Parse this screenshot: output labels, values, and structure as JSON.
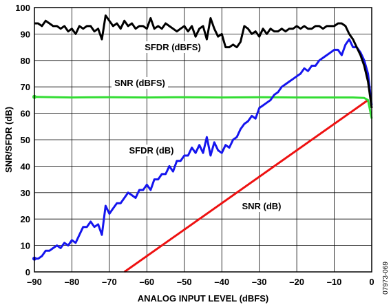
{
  "chart_data": {
    "type": "line",
    "title": "",
    "xlabel": "ANALOG INPUT LEVEL (dBFS)",
    "ylabel": "SNR/SFDR (dB)",
    "xlim": [
      -90,
      0
    ],
    "ylim": [
      0,
      100
    ],
    "x_ticks": [
      -90,
      -80,
      -70,
      -60,
      -50,
      -40,
      -30,
      -20,
      -10,
      0
    ],
    "y_ticks": [
      0,
      10,
      20,
      30,
      40,
      50,
      60,
      70,
      80,
      90,
      100
    ],
    "x_tick_labels": [
      "–90",
      "–80",
      "–70",
      "–60",
      "–50",
      "–40",
      "–30",
      "–20",
      "–10",
      "0"
    ],
    "y_tick_labels": [
      "0",
      "10",
      "20",
      "30",
      "40",
      "50",
      "60",
      "70",
      "80",
      "90",
      "100"
    ],
    "grid": true,
    "figure_id": "07973-069",
    "annotations": [
      "SFDR (dBFS)",
      "SNR (dBFS)",
      "SFDR (dB)",
      "SNR (dB)"
    ],
    "series": [
      {
        "name": "SFDR (dBFS)",
        "color": "#000000",
        "x": [
          -90,
          -89,
          -88,
          -87,
          -86,
          -85,
          -84,
          -83,
          -82,
          -81,
          -80,
          -79,
          -78,
          -77,
          -76,
          -75,
          -74,
          -73,
          -72,
          -71,
          -70,
          -69,
          -68,
          -67,
          -66,
          -65,
          -64,
          -63,
          -62,
          -61,
          -60,
          -59,
          -58,
          -57,
          -56,
          -55,
          -54,
          -53,
          -52,
          -51,
          -50,
          -49,
          -48,
          -47,
          -46,
          -45,
          -44,
          -43,
          -42,
          -41,
          -40,
          -39,
          -38,
          -37,
          -36,
          -35,
          -34,
          -33,
          -32,
          -31,
          -30,
          -29,
          -28,
          -27,
          -26,
          -25,
          -24,
          -23,
          -22,
          -21,
          -20,
          -19,
          -18,
          -17,
          -16,
          -15,
          -14,
          -13,
          -12,
          -11,
          -10,
          -9,
          -8,
          -7,
          -6,
          -5,
          -4,
          -3,
          -2,
          -1,
          0
        ],
        "y": [
          94,
          94,
          93,
          95,
          94,
          93,
          93,
          92,
          93,
          91,
          92,
          90,
          93,
          92,
          93,
          93,
          91,
          92,
          88,
          97,
          95,
          93,
          94,
          92,
          95,
          93,
          94,
          92,
          93,
          93,
          92,
          96,
          92,
          93,
          92,
          94,
          93,
          92,
          91,
          92,
          93,
          91,
          93,
          89,
          92,
          93,
          88,
          96,
          92,
          89,
          90,
          85,
          85,
          86,
          85,
          87,
          93,
          92,
          90,
          91,
          89,
          92,
          90,
          92,
          91,
          91,
          92,
          91,
          92,
          92,
          93,
          92,
          93,
          92,
          92,
          93,
          93,
          92,
          93,
          93,
          93,
          94,
          94,
          93,
          90,
          88,
          85,
          82,
          78,
          72,
          62
        ]
      },
      {
        "name": "SNR (dBFS)",
        "color": "#33dd33",
        "x": [
          -90,
          -80,
          -70,
          -60,
          -50,
          -40,
          -30,
          -20,
          -10,
          -5,
          -2,
          -1,
          0
        ],
        "y": [
          66.2,
          66.0,
          66.1,
          66.0,
          66.1,
          66.0,
          66.1,
          66.0,
          66.0,
          66.0,
          65.8,
          65.0,
          58
        ]
      },
      {
        "name": "SFDR (dB)",
        "color": "#1515ee",
        "x": [
          -90,
          -89,
          -88,
          -87,
          -86,
          -85,
          -84,
          -83,
          -82,
          -81,
          -80,
          -79,
          -78,
          -77,
          -76,
          -75,
          -74,
          -73,
          -72,
          -71,
          -70,
          -69,
          -68,
          -67,
          -66,
          -65,
          -64,
          -63,
          -62,
          -61,
          -60,
          -59,
          -58,
          -57,
          -56,
          -55,
          -54,
          -53,
          -52,
          -51,
          -50,
          -49,
          -48,
          -47,
          -46,
          -45,
          -44,
          -43,
          -42,
          -41,
          -40,
          -39,
          -38,
          -37,
          -36,
          -35,
          -34,
          -33,
          -32,
          -31,
          -30,
          -29,
          -28,
          -27,
          -26,
          -25,
          -24,
          -23,
          -22,
          -21,
          -20,
          -19,
          -18,
          -17,
          -16,
          -15,
          -14,
          -13,
          -12,
          -11,
          -10,
          -9,
          -8,
          -7,
          -6,
          -5,
          -4,
          -3,
          -2,
          -1,
          0
        ],
        "y": [
          5,
          5,
          6,
          8,
          8,
          9,
          10,
          9,
          11,
          10,
          12,
          11,
          14,
          17,
          17,
          19,
          17,
          18,
          14,
          25,
          22,
          24,
          26,
          26,
          28,
          30,
          29,
          28,
          31,
          31,
          33,
          31,
          35,
          35,
          37,
          37,
          40,
          38,
          42,
          42,
          44,
          44,
          47,
          45,
          48,
          45,
          51,
          44,
          49,
          46,
          45,
          48,
          47,
          50,
          51,
          54,
          56,
          57,
          59,
          58,
          62,
          63,
          64,
          65,
          67,
          68,
          70,
          71,
          72,
          73,
          74,
          75,
          77,
          76,
          78,
          78,
          80,
          81,
          82,
          83,
          84,
          84,
          82,
          86,
          88,
          85,
          85,
          83,
          80,
          75,
          63
        ]
      },
      {
        "name": "SNR (dB)",
        "color": "#ee1111",
        "x": [
          -66,
          -1
        ],
        "y": [
          0,
          65
        ]
      }
    ]
  }
}
